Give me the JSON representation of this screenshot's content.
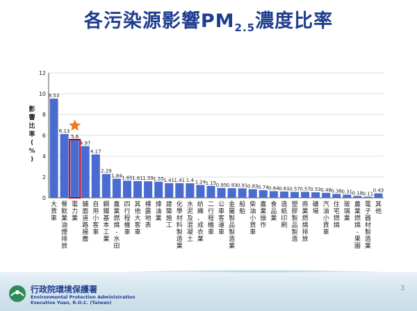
{
  "slide": {
    "title_main": "各污染源影響PM",
    "title_sub": "2.5",
    "title_end": "濃度比率",
    "page_number": "3"
  },
  "footer": {
    "org_zh": "行政院環境保護署",
    "org_en_line1": "Environmental Protection Administration",
    "org_en_line2": "Executive Yuan, R.O.C. (Taiwan)"
  },
  "colors": {
    "bar": "#4a6bd0",
    "highlight_box": "#c0001e",
    "star": "#f07820",
    "title": "#1f3d8f"
  },
  "chart_data": {
    "type": "bar",
    "ylabel": "影響比率(%)",
    "ylim": [
      0,
      12
    ],
    "yticks": [
      0,
      2,
      4,
      6,
      8,
      10,
      12
    ],
    "grid": true,
    "highlight_index": 2,
    "categories": [
      "大貨車",
      "餐飲業油煙排放",
      "電力業",
      "鋪面道路揚塵",
      "自用小客車",
      "鋼鐵基本工業",
      "農業燃燒-水田",
      "四行程機車",
      "其他大客車",
      "裸露地表",
      "煉油業",
      "建築施工",
      "化學材料製造業",
      "水泥及混凝土",
      "紡織、成衣業",
      "二行程機車",
      "公車客運車",
      "金屬製品製造業",
      "船舶",
      "柴油小貨車",
      "農業操作",
      "食品業",
      "造紙印刷",
      "塑膠製品製造",
      "商業燃燒排放",
      "礦場",
      "汽油小貨車",
      "住宅燃燒",
      "玻璃業",
      "農業燃燒-果園",
      "電子器材製造業",
      "其他"
    ],
    "values": [
      9.53,
      6.13,
      5.6,
      4.97,
      4.17,
      2.29,
      1.84,
      1.65,
      1.61,
      1.59,
      1.55,
      1.41,
      1.41,
      1.4,
      1.24,
      1.15,
      0.95,
      0.93,
      0.91,
      0.83,
      0.74,
      0.64,
      0.61,
      0.57,
      0.57,
      0.53,
      0.48,
      0.38,
      0.31,
      0.18,
      0.11,
      0.43
    ],
    "data_labels": [
      "9.53",
      "6.13",
      "5.6",
      "4.97",
      "4.17",
      "2.29",
      "1.84",
      "1.65",
      "1.61",
      "1.59",
      "1.55",
      "1.41",
      "1.41",
      "1.4",
      "1.24",
      "1.15",
      "0.95",
      "0.93",
      "0.91",
      "0.83",
      "0.74",
      "0.64",
      "0.61",
      "0.57",
      "0.57",
      "0.53",
      "0.48",
      "0.38",
      "0.31",
      "0.18",
      "0.11",
      "0.43"
    ]
  }
}
